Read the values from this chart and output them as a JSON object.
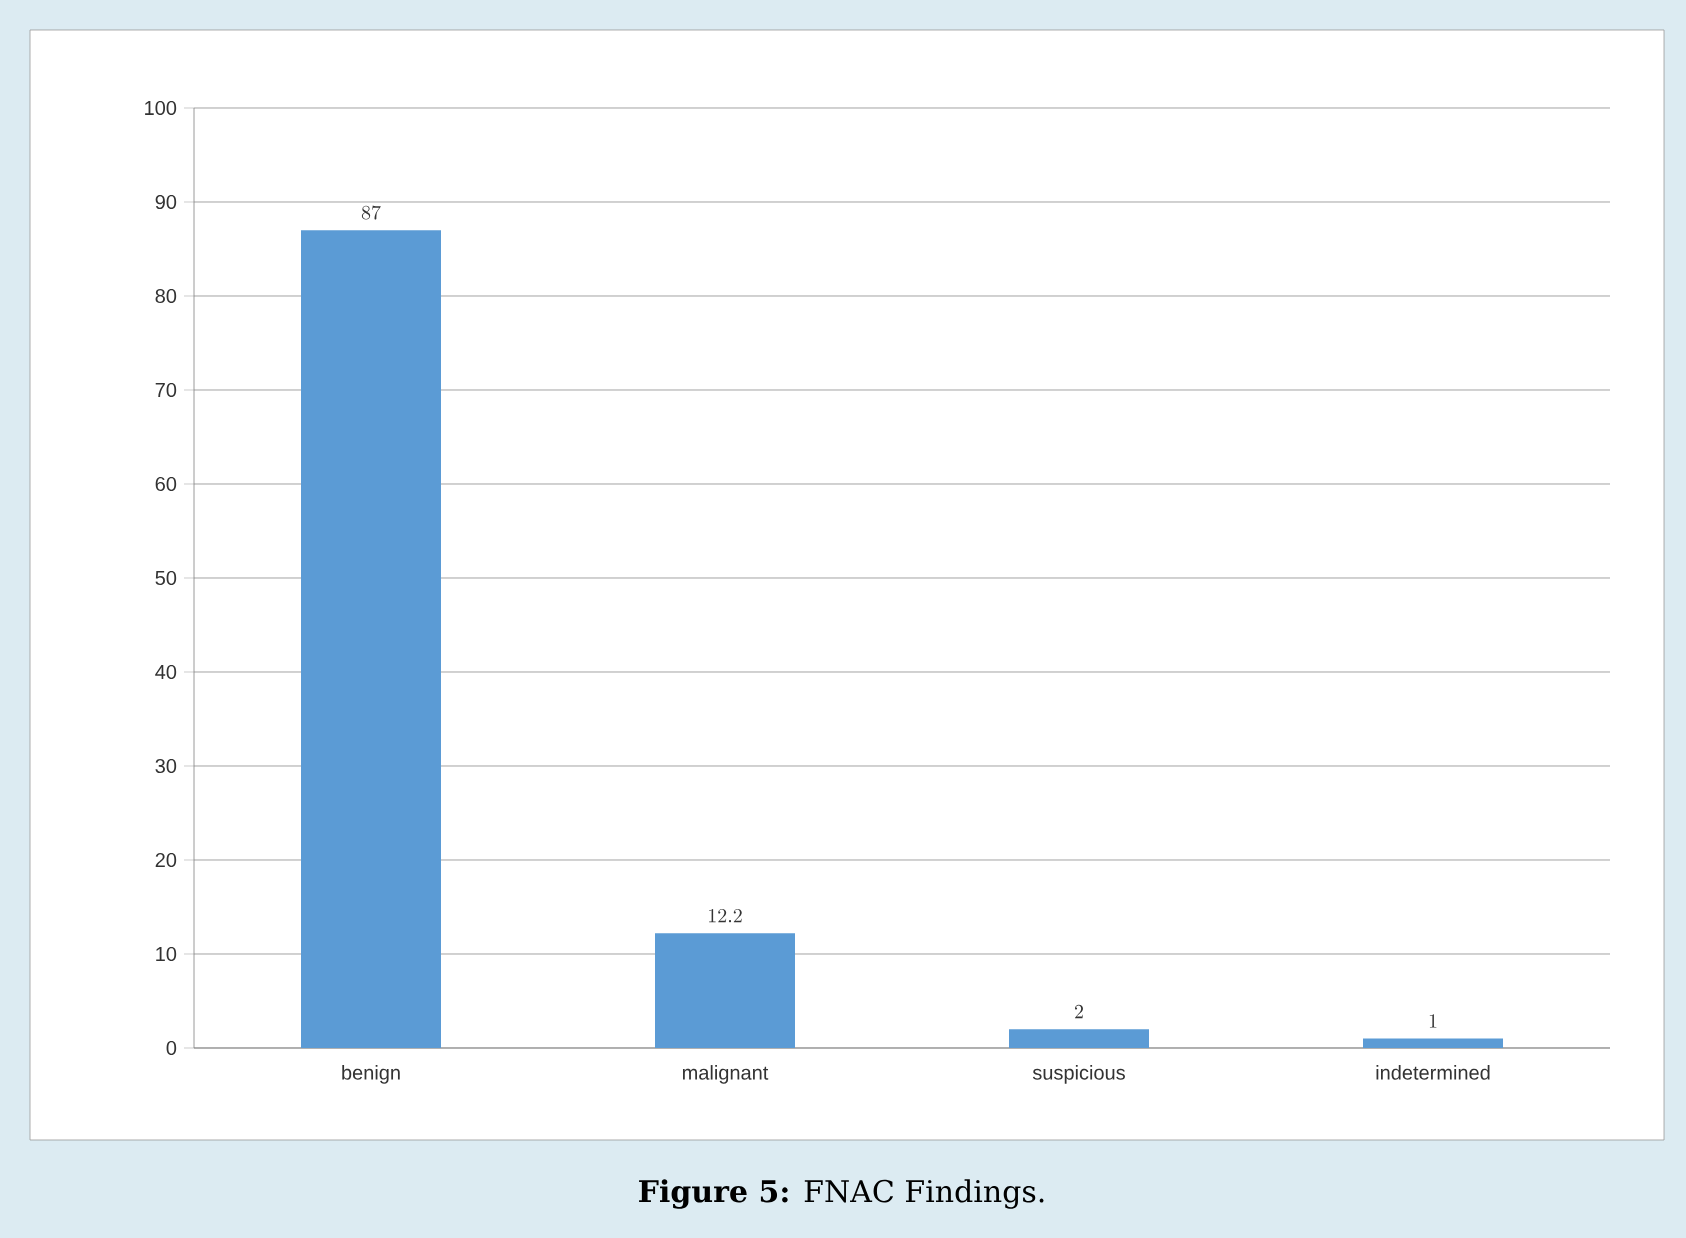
{
  "chart_data": {
    "type": "bar",
    "categories": [
      "benign",
      "malignant",
      "suspicious",
      "indetermined"
    ],
    "values": [
      87,
      12.2,
      2,
      1
    ],
    "color": "#5b9bd5",
    "ylim": [
      0,
      100
    ],
    "yticks": [
      0,
      10,
      20,
      30,
      40,
      50,
      60,
      70,
      80,
      90,
      100
    ],
    "grid": "y",
    "data_labels": true,
    "annotations": [
      "**Figure 5:** FNAC Findings."
    ]
  }
}
